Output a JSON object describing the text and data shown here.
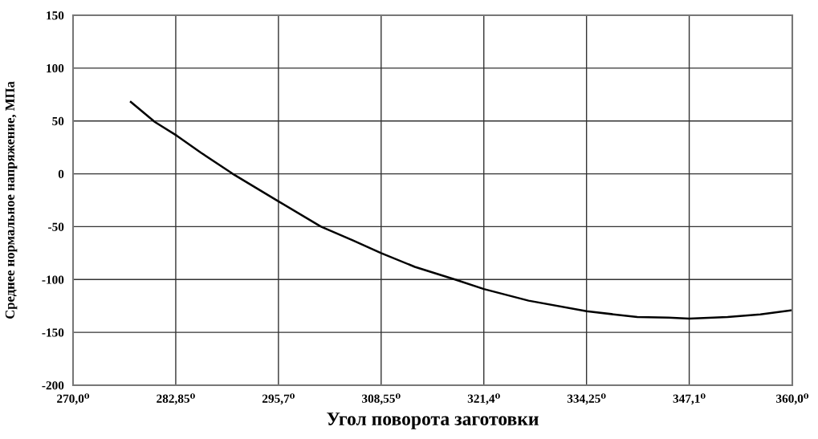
{
  "chart_data": {
    "type": "line",
    "xlabel": "Угол поворота заготовки",
    "ylabel": "Среднее нормальное напряжение, МПа",
    "series": [
      {
        "color": "#000000",
        "x": [
          277.23,
          280.24,
          283.0,
          286.0,
          289.98,
          295.7,
          301.02,
          305.04,
          308.55,
          312.76,
          317.79,
          321.4,
          327.0,
          334.25,
          340.6,
          344.5,
          347.1,
          351.9,
          356.0,
          360.0
        ],
        "values": [
          68,
          49,
          36,
          20,
          0,
          -26,
          -50,
          -63,
          -75,
          -88,
          -100,
          -109,
          -120,
          -130,
          -135.5,
          -136,
          -137,
          -135.5,
          -133,
          -129
        ]
      }
    ],
    "xlim": [
      270,
      360
    ],
    "ylim": [
      -200,
      150
    ],
    "xticks": [
      {
        "value": 270,
        "label": "270,0⁰"
      },
      {
        "value": 282.85,
        "label": "282,85⁰"
      },
      {
        "value": 295.7,
        "label": "295,7⁰"
      },
      {
        "value": 308.55,
        "label": "308,55⁰"
      },
      {
        "value": 321.4,
        "label": "321,4⁰"
      },
      {
        "value": 334.25,
        "label": "334,25⁰"
      },
      {
        "value": 347.1,
        "label": "347,1⁰"
      },
      {
        "value": 360,
        "label": "360,0⁰"
      }
    ],
    "yticks": [
      -200,
      -150,
      -100,
      -50,
      0,
      50,
      100,
      150
    ],
    "grid": true,
    "marker": "none",
    "line_style": "solid"
  }
}
